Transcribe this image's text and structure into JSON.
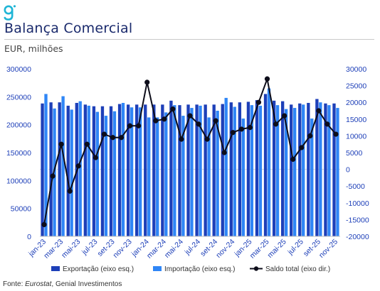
{
  "header": {
    "title": "Balança Comercial",
    "subtitle": "EUR, milhões"
  },
  "footer": {
    "source_prefix": "Fonte: ",
    "source_italic": "Eurostat",
    "source_rest": ", Genial Investimentos"
  },
  "colors": {
    "export": "#1d3fb8",
    "import": "#2f86f6",
    "saldo": "#0d0d1a",
    "title": "#1a2a6c"
  },
  "chart_data": {
    "type": "bar",
    "months": [
      "jan-23",
      "fev-23",
      "mar-23",
      "abr-23",
      "mai-23",
      "jun-23",
      "jul-23",
      "ago-23",
      "set-23",
      "out-23",
      "nov-23",
      "dez-23",
      "jan-24",
      "fev-24",
      "mar-24",
      "abr-24",
      "mai-24",
      "jun-24",
      "jul-24",
      "ago-24",
      "set-24",
      "out-24",
      "nov-24",
      "dez-24",
      "jan-25",
      "fev-25",
      "mar-25",
      "abr-25",
      "mai-25",
      "jun-25",
      "jul-25",
      "ago-25",
      "set-25",
      "out-25",
      "nov-25"
    ],
    "tick_labels": [
      "jan-23",
      "mar-23",
      "mai-23",
      "jul-23",
      "set-23",
      "nov-23",
      "jan-24",
      "mar-24",
      "mai-24",
      "jul-24",
      "set-24",
      "nov-24",
      "jan-25",
      "mar-25",
      "mai-25",
      "jul-25",
      "set-25",
      "nov-25"
    ],
    "series": [
      {
        "name": "Exportação (eixo esq.)",
        "axis": "left",
        "kind": "bar",
        "values": [
          238000,
          240000,
          240000,
          234000,
          239000,
          236000,
          233000,
          233000,
          233000,
          237000,
          236000,
          236000,
          236000,
          236000,
          236000,
          243000,
          235000,
          236000,
          236000,
          236000,
          236000,
          237000,
          240000,
          240000,
          241000,
          244000,
          255000,
          243000,
          242000,
          236000,
          238000,
          239000,
          246000,
          238000,
          238000
        ]
      },
      {
        "name": "Importação (eixo esq.)",
        "axis": "left",
        "kind": "bar",
        "values": [
          255000,
          229000,
          251000,
          227000,
          242000,
          234000,
          223000,
          216000,
          224000,
          239000,
          231000,
          231000,
          213000,
          213000,
          222000,
          235000,
          216000,
          230000,
          234000,
          213000,
          225000,
          248000,
          232000,
          211000,
          235000,
          234000,
          265000,
          235000,
          228000,
          230000,
          236000,
          211000,
          240000,
          235000,
          230000
        ]
      },
      {
        "name": "Saldo total (eixo dir.)",
        "axis": "right",
        "kind": "line",
        "values": [
          -16500,
          -2000,
          7500,
          -6500,
          1000,
          7500,
          3500,
          10500,
          9500,
          9500,
          13000,
          13000,
          26000,
          14500,
          15000,
          18000,
          9000,
          16000,
          13500,
          9000,
          14500,
          5000,
          11000,
          12000,
          12500,
          20000,
          27000,
          13500,
          16000,
          3000,
          6500,
          10000,
          17500,
          13500,
          10500
        ]
      }
    ],
    "y_left": {
      "min": 0,
      "max": 300000,
      "ticks": [
        0,
        50000,
        100000,
        150000,
        200000,
        250000,
        300000
      ]
    },
    "y_right": {
      "min": -20000,
      "max": 30000,
      "ticks": [
        -20000,
        -15000,
        -10000,
        -5000,
        0,
        5000,
        10000,
        15000,
        20000,
        25000,
        30000
      ]
    },
    "zero_line": "dashed",
    "legend_position": "bottom"
  }
}
